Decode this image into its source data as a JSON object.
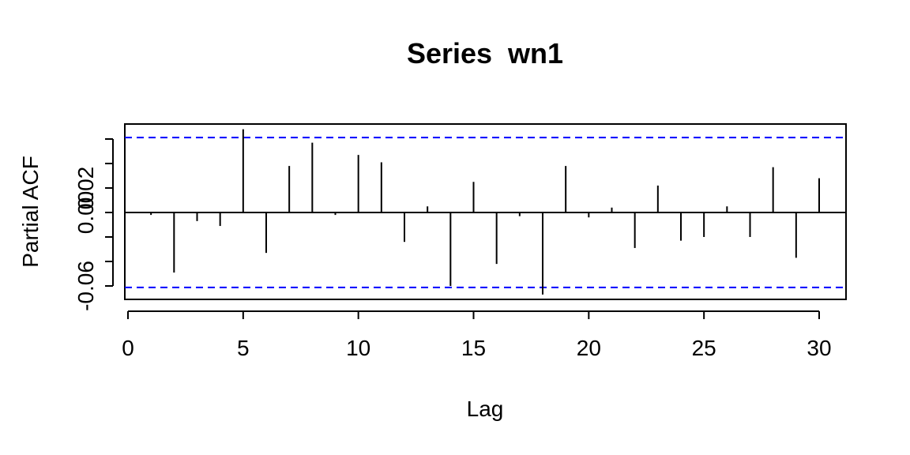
{
  "chart_data": {
    "type": "bar",
    "title": "Series  wn1",
    "xlabel": "Lag",
    "ylabel": "Partial ACF",
    "xlim": [
      0,
      31
    ],
    "ylim": [
      -0.072,
      0.072
    ],
    "x_ticks": [
      "0",
      "5",
      "10",
      "15",
      "20",
      "25",
      "30"
    ],
    "y_ticks": [
      "-0.06",
      "0.02",
      "0.02",
      "0.02",
      "0.02"
    ],
    "y_tick_labels": [
      {
        "value": -0.06,
        "label": "-0.06"
      },
      {
        "value": 0.0,
        "label": "0.00"
      },
      {
        "value": 0.02,
        "label": "0.02"
      }
    ],
    "y_tick_marks": [
      -0.06,
      -0.04,
      -0.02,
      0.0,
      0.02,
      0.04,
      0.06
    ],
    "confidence_limit": 0.0612,
    "confidence_color": "#0000ff",
    "bar_color": "#000000",
    "lags": [
      1,
      2,
      3,
      4,
      5,
      6,
      7,
      8,
      9,
      10,
      11,
      12,
      13,
      14,
      15,
      16,
      17,
      18,
      19,
      20,
      21,
      22,
      23,
      24,
      25,
      26,
      27,
      28,
      29,
      30
    ],
    "values": [
      -0.002,
      -0.049,
      -0.007,
      -0.011,
      0.068,
      -0.033,
      0.038,
      0.057,
      -0.002,
      0.047,
      0.041,
      -0.024,
      0.005,
      -0.06,
      0.025,
      -0.042,
      -0.003,
      -0.067,
      0.038,
      -0.004,
      0.004,
      -0.029,
      0.022,
      -0.023,
      -0.02,
      0.005,
      -0.02,
      0.037,
      -0.037,
      0.028
    ]
  }
}
